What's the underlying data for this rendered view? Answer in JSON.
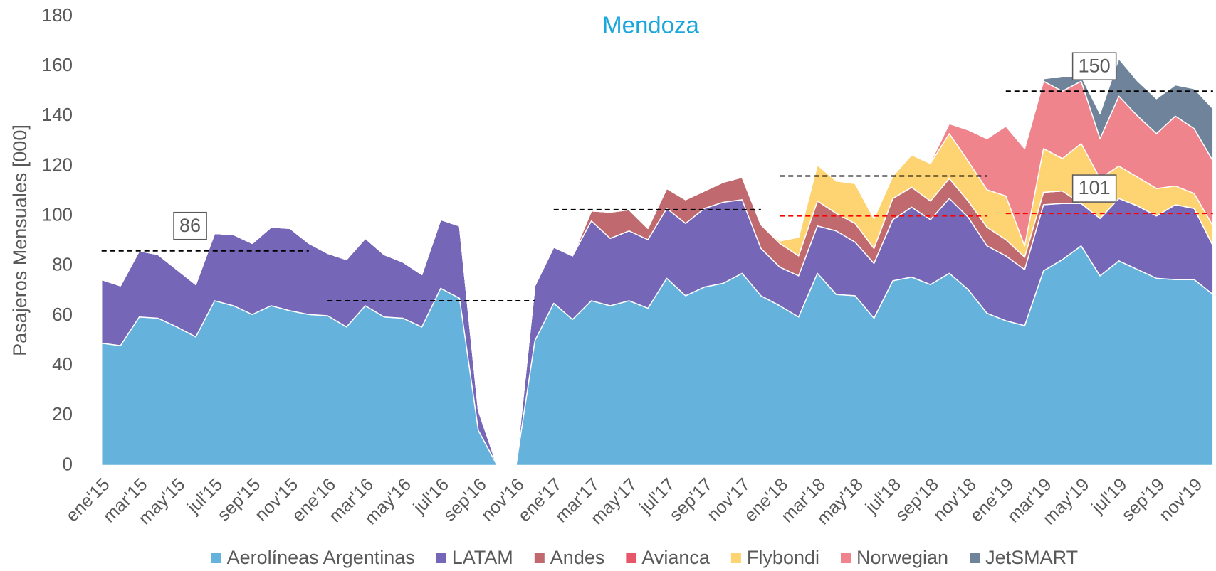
{
  "chart_data": {
    "type": "stacked_area",
    "title": "Mendoza",
    "y_label": "Pasajeros Mensuales [000]",
    "categories": [
      "ene'15",
      null,
      "mar'15",
      null,
      "may'15",
      null,
      "jul'15",
      null,
      "sep'15",
      null,
      "nov'15",
      null,
      "ene'16",
      null,
      "mar'16",
      null,
      "may'16",
      null,
      "jul'16",
      null,
      "sep'16",
      null,
      "nov'16",
      null,
      "ene'17",
      null,
      "mar'17",
      null,
      "may'17",
      null,
      "jul'17",
      null,
      "sep'17",
      null,
      "nov'17",
      null,
      "ene'18",
      null,
      "mar'18",
      null,
      "may'18",
      null,
      "jul'18",
      null,
      "sep'18",
      null,
      "nov'18",
      null,
      "ene'19",
      null,
      "mar'19",
      null,
      "may'19",
      null,
      "jul'19",
      null,
      "sep'19",
      null,
      "nov'19",
      null
    ],
    "series": [
      {
        "name": "Aerolíneas Argentinas",
        "color": "#65b2dc",
        "values": [
          49,
          48,
          59.5,
          59,
          55.5,
          51.5,
          66,
          64,
          60.5,
          64,
          62,
          60.5,
          60,
          55.5,
          64,
          59.5,
          59,
          55.5,
          71,
          67,
          14,
          0,
          0,
          50,
          65,
          58.5,
          66,
          64,
          66,
          63,
          75,
          68,
          71.5,
          73,
          77,
          68,
          64,
          59.5,
          77,
          68.5,
          68,
          59,
          74,
          75.5,
          72.5,
          77,
          70.5,
          61,
          58,
          56,
          78,
          82.5,
          88,
          76,
          82,
          78.5,
          75,
          74.5,
          74.5,
          68.5
        ]
      },
      {
        "name": "LATAM",
        "color": "#7566b8",
        "values": [
          25.5,
          24,
          26.5,
          25.5,
          23,
          21,
          27,
          28.5,
          28.5,
          31.5,
          33,
          28.5,
          25,
          27,
          27,
          25,
          22.5,
          21,
          27.5,
          29,
          8,
          0,
          0,
          22,
          22.5,
          25.5,
          32,
          27,
          28,
          27.5,
          28,
          29,
          31.5,
          32.5,
          29.5,
          19,
          15.5,
          16.5,
          19,
          25.5,
          21.5,
          22,
          24.5,
          28,
          26,
          30,
          29,
          27,
          26,
          22.5,
          26.5,
          22.5,
          17,
          23,
          25,
          25.5,
          25,
          30,
          28.5,
          19.5
        ]
      },
      {
        "name": "Andes",
        "color": "#c06a70",
        "values": [
          0,
          0,
          0,
          0,
          0,
          0,
          0,
          0,
          0,
          0,
          0,
          0,
          0,
          0,
          0,
          0,
          0,
          0,
          0,
          0,
          0,
          0,
          0,
          0,
          0,
          0,
          4,
          10.5,
          8.5,
          4.5,
          8,
          9.5,
          7,
          8,
          9,
          9.5,
          9.5,
          8,
          10,
          7,
          7.5,
          6,
          8.5,
          8,
          7.5,
          8,
          6.5,
          7.5,
          6.5,
          5,
          5,
          5,
          0,
          0,
          0,
          0,
          0,
          0,
          0,
          0
        ]
      },
      {
        "name": "Avianca",
        "color": "#e8566a",
        "values": [
          0,
          0,
          0,
          0,
          0,
          0,
          0,
          0,
          0,
          0,
          0.5,
          0.5,
          0,
          0,
          0,
          0,
          0,
          0,
          0,
          0,
          0,
          0,
          0,
          0,
          0,
          0,
          0,
          0,
          0,
          0,
          0,
          0,
          0,
          0,
          0,
          0,
          0,
          0,
          0,
          0,
          0,
          0,
          0,
          0,
          0,
          0,
          0,
          0,
          0,
          0,
          0,
          0,
          0,
          0,
          0,
          0,
          0,
          0,
          0,
          0
        ]
      },
      {
        "name": "Flybondi",
        "color": "#fdd471",
        "values": [
          0,
          0,
          0,
          0,
          0,
          0,
          0,
          0,
          0,
          0,
          0,
          0,
          0,
          0,
          0,
          0,
          0,
          0,
          0,
          0,
          0,
          0,
          0,
          0,
          0,
          0,
          0,
          0,
          0,
          0,
          0,
          0,
          0,
          0,
          0,
          0,
          1,
          7.5,
          14.5,
          13,
          16,
          12,
          9,
          13,
          15,
          18,
          16,
          15,
          17.5,
          4.5,
          17.5,
          13,
          24,
          16,
          13,
          11.5,
          11,
          7.5,
          6,
          8
        ]
      },
      {
        "name": "Norwegian",
        "color": "#ef848c",
        "values": [
          0,
          0,
          0,
          0,
          0,
          0,
          0,
          0,
          0,
          0,
          0,
          0,
          0,
          0,
          0,
          0,
          0,
          0,
          0,
          0,
          0,
          0,
          0,
          0,
          0,
          0,
          0,
          0,
          0,
          0,
          0,
          0,
          0,
          0,
          0,
          0,
          0,
          0,
          0,
          0,
          0,
          0,
          0,
          0,
          0.5,
          4,
          12.5,
          20.5,
          28,
          39,
          27,
          27,
          25,
          16,
          28,
          24.5,
          22,
          28,
          26,
          26
        ]
      },
      {
        "name": "JetSMART",
        "color": "#6f849b",
        "values": [
          0,
          0,
          0,
          0,
          0,
          0,
          0,
          0,
          0,
          0,
          0,
          0,
          0,
          0,
          0,
          0,
          0,
          0,
          0,
          0,
          0,
          0,
          0,
          0,
          0,
          0,
          0,
          0,
          0,
          0,
          0,
          0,
          0,
          0,
          0,
          0,
          0,
          0,
          0,
          0,
          0,
          0,
          0,
          0,
          0,
          0,
          0,
          0,
          0,
          0,
          1,
          6,
          2,
          10,
          15,
          14,
          14,
          12.5,
          16,
          21
        ]
      }
    ],
    "reference_lines": [
      {
        "value": 86,
        "from": 0,
        "to": 11,
        "color": "#000000",
        "labeled": true
      },
      {
        "value": 66,
        "from": 12,
        "to": 23,
        "color": "#000000",
        "labeled": false
      },
      {
        "value": 102.5,
        "from": 24,
        "to": 35,
        "color": "#000000",
        "labeled": false
      },
      {
        "value": 116,
        "from": 36,
        "to": 47,
        "color": "#000000",
        "labeled": false
      },
      {
        "value": 100,
        "from": 36,
        "to": 47,
        "color": "#ff0000",
        "labeled": false
      },
      {
        "value": 150,
        "from": 48,
        "to": 59,
        "color": "#000000",
        "labeled": true
      },
      {
        "value": 101,
        "from": 48,
        "to": 59,
        "color": "#ff0000",
        "labeled": true
      }
    ],
    "ylim": [
      0,
      180
    ],
    "yticks": [
      0,
      20,
      40,
      60,
      80,
      100,
      120,
      140,
      160,
      180
    ],
    "legend": "bottom"
  }
}
